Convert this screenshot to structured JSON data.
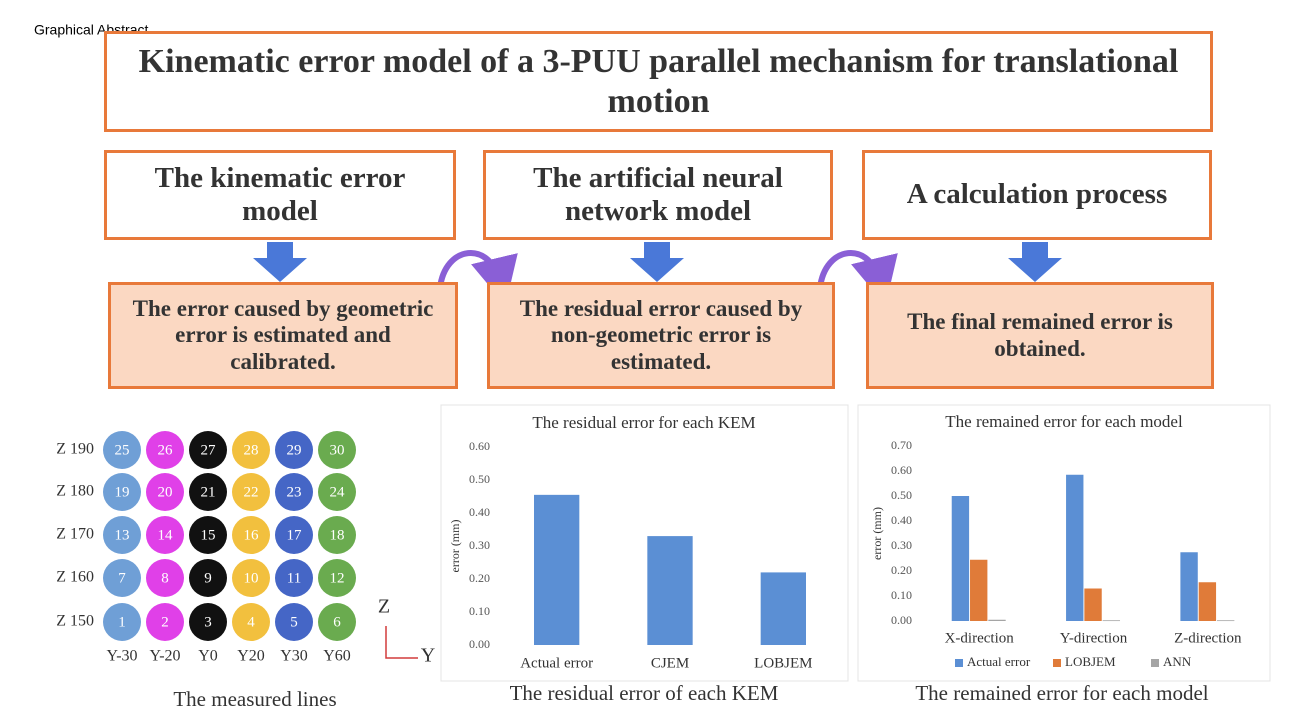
{
  "label": "Graphical Abstract",
  "title": "Kinematic error model of a 3-PUU parallel mechanism for translational motion",
  "models": [
    {
      "title": "The kinematic error model",
      "result": "The error caused by geometric error is estimated and calibrated."
    },
    {
      "title": "The artificial neural network model",
      "result": "The residual error caused by non-geometric error is estimated."
    },
    {
      "title": "A calculation process",
      "result": "The final remained error is obtained."
    }
  ],
  "lines": {
    "rows": [
      "Z 190",
      "Z 180",
      "Z 170",
      "Z 160",
      "Z 150"
    ],
    "columns": [
      "Y-30",
      "Y-20",
      "Y0",
      "Y20",
      "Y30",
      "Y60"
    ],
    "colors": [
      "#6f9fd6",
      "#e040e8",
      "#111111",
      "#f2c03e",
      "#4566c6",
      "#6aab4f"
    ],
    "numbers": [
      [
        25,
        26,
        27,
        28,
        29,
        30
      ],
      [
        19,
        20,
        21,
        22,
        23,
        24
      ],
      [
        13,
        14,
        15,
        16,
        17,
        18
      ],
      [
        7,
        8,
        9,
        10,
        11,
        12
      ],
      [
        1,
        2,
        3,
        4,
        5,
        6
      ]
    ],
    "axes": [
      "Z",
      "Y"
    ],
    "caption": "The measured lines"
  },
  "chart_data": [
    {
      "type": "bar",
      "title": "The residual error for each KEM",
      "y_label": "error (mm)",
      "caption": "The residual error of each KEM",
      "categories": [
        "Actual error",
        "CJEM",
        "LOBJEM"
      ],
      "values": [
        0.455,
        0.33,
        0.22
      ],
      "color": "#5b8fd4",
      "ylim": [
        0,
        0.6
      ],
      "yticks": [
        {
          "value": 0,
          "label": "0.00"
        },
        {
          "value": 0.1,
          "label": "0.10"
        },
        {
          "value": 0.2,
          "label": "0.20"
        },
        {
          "value": 0.3,
          "label": "0.30"
        },
        {
          "value": 0.4,
          "label": "0.40"
        },
        {
          "value": 0.5,
          "label": "0.50"
        },
        {
          "value": 0.6,
          "label": "0.60"
        }
      ]
    },
    {
      "type": "grouped_bar",
      "title": "The remained error for each model",
      "y_label": "error (mm)",
      "caption": "The remained error for each model",
      "categories": [
        "X-direction",
        "Y-direction",
        "Z-direction"
      ],
      "series": [
        {
          "name": "Actual error",
          "color": "#5b8fd4",
          "values": [
            0.5,
            0.585,
            0.275
          ]
        },
        {
          "name": "LOBJEM",
          "color": "#e07b39",
          "values": [
            0.245,
            0.13,
            0.155
          ]
        },
        {
          "name": "ANN",
          "color": "#a5a5a5",
          "values": [
            0.005,
            0.003,
            0.003
          ]
        }
      ],
      "ylim": [
        0,
        0.7
      ],
      "yticks": [
        {
          "value": 0,
          "label": "0.00"
        },
        {
          "value": 0.1,
          "label": "0.10"
        },
        {
          "value": 0.2,
          "label": "0.20"
        },
        {
          "value": 0.3,
          "label": "0.30"
        },
        {
          "value": 0.4,
          "label": "0.40"
        },
        {
          "value": 0.5,
          "label": "0.50"
        },
        {
          "value": 0.6,
          "label": "0.60"
        },
        {
          "value": 0.7,
          "label": "0.70"
        }
      ]
    }
  ]
}
